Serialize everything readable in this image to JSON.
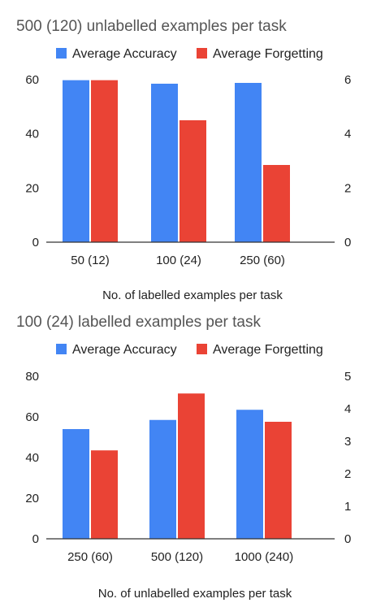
{
  "colors": {
    "accuracy": "#4285F4",
    "forgetting": "#EA4335"
  },
  "chart_data": [
    {
      "type": "bar",
      "title": "500 (120) unlabelled examples per task",
      "xlabel": "No. of labelled examples per task",
      "categories": [
        "50 (12)",
        "100 (24)",
        "250 (60)"
      ],
      "legend_position": "top",
      "grid": false,
      "y_left": {
        "ylim": [
          0,
          60
        ],
        "ticks": [
          "0",
          "20",
          "40",
          "60"
        ]
      },
      "y_right": {
        "ylim": [
          0,
          6
        ],
        "ticks": [
          "0",
          "2",
          "4",
          "6"
        ]
      },
      "series": [
        {
          "name": "Average Accuracy",
          "axis": "left",
          "values": [
            59.8,
            58.5,
            58.8
          ]
        },
        {
          "name": "Average Forgetting",
          "axis": "right",
          "values": [
            5.98,
            4.5,
            2.85
          ]
        }
      ]
    },
    {
      "type": "bar",
      "title": "100 (24) labelled examples per task",
      "xlabel": "No. of unlabelled examples per task",
      "categories": [
        "250 (60)",
        "500 (120)",
        "1000 (240)"
      ],
      "legend_position": "top",
      "grid": false,
      "y_left": {
        "ylim": [
          0,
          80
        ],
        "ticks": [
          "0",
          "20",
          "40",
          "60",
          "80"
        ]
      },
      "y_right": {
        "ylim": [
          0,
          5
        ],
        "ticks": [
          "0",
          "1",
          "2",
          "3",
          "4",
          "5"
        ]
      },
      "series": [
        {
          "name": "Average Accuracy",
          "axis": "left",
          "values": [
            54,
            58.5,
            63.5
          ]
        },
        {
          "name": "Average Forgetting",
          "axis": "right",
          "values": [
            2.72,
            4.47,
            3.6
          ]
        }
      ]
    }
  ]
}
